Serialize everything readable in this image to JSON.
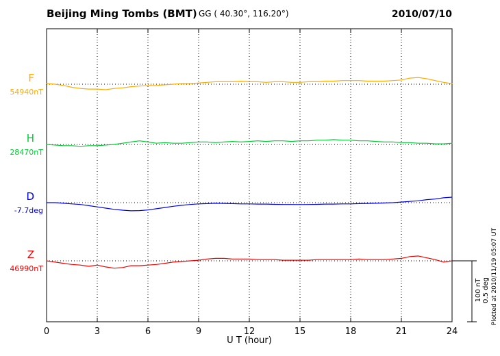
{
  "header": {
    "title": "Beijing Ming Tombs (BMT)",
    "coordinates": "GG ( 40.30°, 116.20°)",
    "date": "2010/07/10"
  },
  "chart_data": {
    "type": "line",
    "title": "Beijing Ming Tombs (BMT)",
    "xlabel": "U T (hour)",
    "x_unit": "hour",
    "xlim": [
      0,
      24
    ],
    "x_ticks": [
      0,
      3,
      6,
      9,
      12,
      15,
      18,
      21,
      24
    ],
    "x_start": 0,
    "x_step": 0.5,
    "grid": "vertical dotted lines every 3 hours; dotted horizontal baseline per series",
    "legend_position": "left margin labels",
    "values_are_offsets_from_baseline": true,
    "scale_reference": {
      "nT_bar": "100 nT",
      "deg_bar": "0.5 deg"
    },
    "series": [
      {
        "name": "F",
        "unit": "nT",
        "baseline_value": 54940,
        "baseline_label": "54940nT",
        "color": "#ffaa00",
        "values": [
          1,
          0,
          -2,
          -5,
          -7,
          -8,
          -8,
          -9,
          -7,
          -6,
          -4,
          -3,
          -2,
          -2,
          -1,
          0,
          1,
          1,
          2,
          3,
          4,
          4,
          4,
          5,
          4,
          4,
          3,
          4,
          4,
          3,
          3,
          4,
          4,
          5,
          5,
          6,
          6,
          6,
          5,
          5,
          5,
          6,
          7,
          10,
          11,
          9,
          6,
          3,
          1
        ]
      },
      {
        "name": "H",
        "unit": "nT",
        "baseline_value": 28470,
        "baseline_label": "28470nT",
        "color": "#00cc33",
        "values": [
          0,
          -1,
          -2,
          -2,
          -3,
          -2,
          -2,
          -1,
          0,
          2,
          4,
          6,
          4,
          2,
          3,
          2,
          2,
          3,
          4,
          4,
          3,
          4,
          5,
          4,
          5,
          6,
          5,
          6,
          6,
          5,
          6,
          6,
          7,
          7,
          8,
          7,
          7,
          6,
          6,
          5,
          4,
          4,
          3,
          3,
          2,
          2,
          1,
          1,
          2
        ]
      },
      {
        "name": "D",
        "unit": "deg",
        "baseline_value": -7.7,
        "baseline_label": "-7.7deg",
        "color": "#0000ee",
        "values": [
          0,
          0,
          -0.005,
          -0.01,
          -0.015,
          -0.025,
          -0.035,
          -0.045,
          -0.055,
          -0.062,
          -0.067,
          -0.065,
          -0.06,
          -0.05,
          -0.04,
          -0.03,
          -0.022,
          -0.015,
          -0.01,
          -0.008,
          -0.005,
          -0.006,
          -0.008,
          -0.01,
          -0.01,
          -0.012,
          -0.012,
          -0.014,
          -0.015,
          -0.015,
          -0.016,
          -0.015,
          -0.014,
          -0.012,
          -0.012,
          -0.01,
          -0.01,
          -0.008,
          -0.006,
          -0.005,
          -0.003,
          0,
          0.005,
          0.01,
          0.015,
          0.025,
          0.03,
          0.04,
          0.045
        ]
      },
      {
        "name": "Z",
        "unit": "nT",
        "baseline_value": 46990,
        "baseline_label": "46990nT",
        "color": "#ee0000",
        "values": [
          0,
          -2,
          -4,
          -6,
          -7,
          -9,
          -7,
          -10,
          -12,
          -11,
          -8,
          -8,
          -7,
          -6,
          -4,
          -2,
          -1,
          0,
          1,
          3,
          4,
          4,
          3,
          3,
          3,
          2,
          2,
          2,
          1,
          1,
          1,
          1,
          2,
          2,
          2,
          2,
          2,
          3,
          2,
          2,
          2,
          3,
          4,
          7,
          8,
          5,
          2,
          -2,
          0
        ]
      }
    ]
  },
  "annotations": {
    "plotted_at": "Plotted at 2010/11/19 05:07 UT",
    "scale_nt": "100 nT",
    "scale_deg": "0.5 deg"
  }
}
